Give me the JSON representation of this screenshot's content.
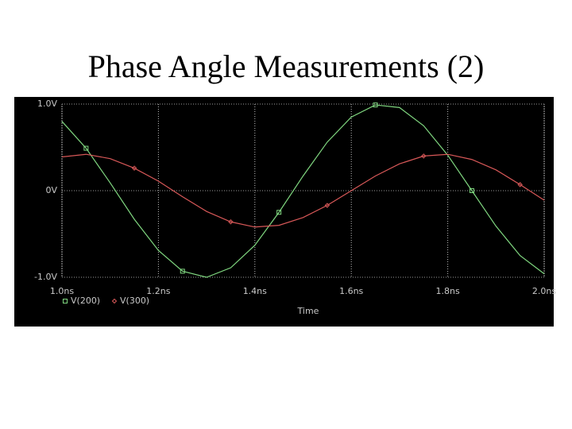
{
  "chart_data": {
    "type": "line",
    "title": "Phase Angle Measurements (2)",
    "x_label": "Time",
    "x": [
      1.0,
      1.05,
      1.1,
      1.15,
      1.2,
      1.25,
      1.3,
      1.35,
      1.4,
      1.45,
      1.5,
      1.55,
      1.6,
      1.65,
      1.7,
      1.75,
      1.8,
      1.85,
      1.9,
      1.95,
      2.0
    ],
    "series": [
      {
        "name": "V(200)",
        "color": "#80d880",
        "marker": "square",
        "values": [
          0.8,
          0.49,
          0.09,
          -0.33,
          -0.69,
          -0.93,
          -1.0,
          -0.89,
          -0.63,
          -0.25,
          0.17,
          0.56,
          0.85,
          0.99,
          0.96,
          0.75,
          0.41,
          0.0,
          -0.41,
          -0.75,
          -0.96
        ]
      },
      {
        "name": "V(300)",
        "color": "#d85858",
        "marker": "diamond",
        "values": [
          0.39,
          0.42,
          0.37,
          0.26,
          0.11,
          -0.07,
          -0.24,
          -0.36,
          -0.42,
          -0.4,
          -0.31,
          -0.17,
          0.0,
          0.17,
          0.31,
          0.4,
          0.42,
          0.36,
          0.24,
          0.07,
          -0.11
        ]
      }
    ],
    "xlim": [
      1.0,
      2.0
    ],
    "xticks": [
      {
        "value": 1.0,
        "label": "1.0ns"
      },
      {
        "value": 1.2,
        "label": "1.2ns"
      },
      {
        "value": 1.4,
        "label": "1.4ns"
      },
      {
        "value": 1.6,
        "label": "1.6ns"
      },
      {
        "value": 1.8,
        "label": "1.8ns"
      },
      {
        "value": 2.0,
        "label": "2.0ns"
      }
    ],
    "ylim": [
      -1.0,
      1.0
    ],
    "yticks": [
      {
        "value": -1.0,
        "label": "-1.0V"
      },
      {
        "value": 0,
        "label": "0V"
      },
      {
        "value": 1.0,
        "label": "1.0V"
      }
    ],
    "grid": true,
    "legend": "bottom-left"
  }
}
